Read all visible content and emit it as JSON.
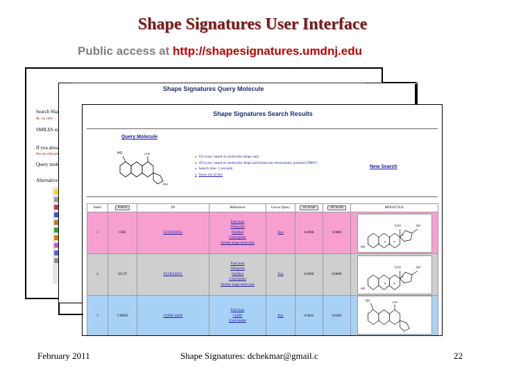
{
  "slide": {
    "title": "Shape Signatures User Interface",
    "subtitle_prefix": "Public access at ",
    "subtitle_url": "http://shapesignatures.umdnj.edu"
  },
  "back_window": {
    "fragments": [
      "Search Shap",
      "By: aa cdbe ...",
      "SMILES stri",
      "If you alread",
      "You are allowed to...",
      "Query molecu",
      "Alternatively"
    ],
    "toolbar_icons": [
      "smiley-icon",
      "bullet-icon",
      "bullet-icon",
      "bullet-icon",
      "bullet-icon",
      "bullet-icon",
      "bullet-icon",
      "bullet-icon",
      "bullet-icon",
      "bullet-icon",
      "bullet-icon"
    ]
  },
  "query_window": {
    "title": "Shape Signatures Query Molecule"
  },
  "results_window": {
    "title": "Shape Signatures Search Results",
    "query_molecule_link": "Query Molecule",
    "query_labels": [
      "HO",
      "CH3",
      "OH"
    ],
    "bullets": [
      "1D score: based on molecular shape only",
      "2D score: based on molecular shape and molecular electrostatic potential (MEP)",
      "Search time: 2 seconds",
      "Show list of hits"
    ],
    "new_search": "New Search",
    "columns": [
      "Index",
      "Source",
      "ID",
      "References",
      "Use as Query",
      "1D Score",
      "2D Score",
      "MOLECULE"
    ],
    "rows": [
      {
        "index": "1",
        "source": "CMC",
        "id": "ESTRADIOL",
        "references": [
          "PubChem",
          "Wikipedia",
          "PubMed",
          "ChemSpider",
          "Similar shape molecules"
        ],
        "use": "Run",
        "score1d": "0.0000",
        "score2d": "0.0000",
        "mol_labels": [
          "CH3",
          "OH",
          "H",
          "H",
          "H",
          "HO"
        ]
      },
      {
        "index": "2",
        "source": "SCUT",
        "id": "ESTRADIOL",
        "references": [
          "PubChem",
          "Wikipedia",
          "PubMed",
          "ChemSpider",
          "Similar shape molecules"
        ],
        "use": "Run",
        "score1d": "0.0000",
        "score2d": "0.0000",
        "mol_labels": [
          "CH3",
          "OH",
          "H",
          "H",
          "H",
          "HO"
        ]
      },
      {
        "index": "3",
        "source": "CHEBI",
        "id": "ChEBI:16469",
        "references": [
          "PubChem",
          "ChEBI",
          "ChemSpider"
        ],
        "use": "Run",
        "score1d": "0.0024",
        "score2d": "0.0366",
        "mol_labels": [
          "OH",
          "CH3"
        ]
      }
    ]
  },
  "footer": {
    "date": "February 2011",
    "center": "Shape Signatures: dchekmar@gmail.c",
    "page": "22"
  }
}
